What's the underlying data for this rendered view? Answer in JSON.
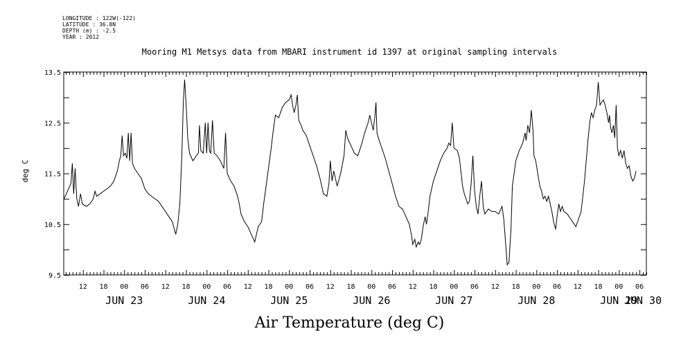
{
  "header": {
    "longitude": "LONGITUDE : 122W(-122)",
    "latitude": "LATITUDE : 36.8N",
    "depth": "DEPTH (m) : -2.5",
    "year": "YEAR : 2012"
  },
  "chart_data": {
    "type": "line",
    "title": "Mooring M1 Metsys data from MBARI instrument id 1397 at original sampling intervals",
    "xlabel": "Air Temperature (deg C)",
    "ylabel": "deg C",
    "ylim": [
      9.5,
      13.5
    ],
    "yticks": [
      "9.5",
      "10.5",
      "11.5",
      "12.5",
      "13.5"
    ],
    "x_unit": "hours since JUN 22 00:00 (2012)",
    "xlim": [
      6.4,
      176
    ],
    "hour_tick_labels": [
      {
        "h": 12,
        "label": "12"
      },
      {
        "h": 18,
        "label": "18"
      },
      {
        "h": 24,
        "label": "00"
      },
      {
        "h": 30,
        "label": "06"
      },
      {
        "h": 36,
        "label": "12"
      },
      {
        "h": 42,
        "label": "18"
      },
      {
        "h": 48,
        "label": "00"
      },
      {
        "h": 54,
        "label": "06"
      },
      {
        "h": 60,
        "label": "12"
      },
      {
        "h": 66,
        "label": "18"
      },
      {
        "h": 72,
        "label": "00"
      },
      {
        "h": 78,
        "label": "06"
      },
      {
        "h": 84,
        "label": "12"
      },
      {
        "h": 90,
        "label": "18"
      },
      {
        "h": 96,
        "label": "00"
      },
      {
        "h": 102,
        "label": "06"
      },
      {
        "h": 108,
        "label": "12"
      },
      {
        "h": 114,
        "label": "18"
      },
      {
        "h": 120,
        "label": "00"
      },
      {
        "h": 126,
        "label": "06"
      },
      {
        "h": 132,
        "label": "12"
      },
      {
        "h": 138,
        "label": "18"
      },
      {
        "h": 144,
        "label": "00"
      },
      {
        "h": 150,
        "label": "06"
      },
      {
        "h": 156,
        "label": "12"
      },
      {
        "h": 162,
        "label": "18"
      },
      {
        "h": 168,
        "label": "00"
      },
      {
        "h": 174,
        "label": "06"
      }
    ],
    "day_labels": [
      {
        "h": 24,
        "label": "JUN 23"
      },
      {
        "h": 48,
        "label": "JUN 24"
      },
      {
        "h": 72,
        "label": "JUN 25"
      },
      {
        "h": 96,
        "label": "JUN 26"
      },
      {
        "h": 120,
        "label": "JUN 27"
      },
      {
        "h": 144,
        "label": "JUN 28"
      },
      {
        "h": 168,
        "label": "JUN 29"
      },
      {
        "h": 175,
        "label": "JUN 30"
      }
    ],
    "series": [
      {
        "values": [
          [
            6.5,
            11.0
          ],
          [
            7.5,
            11.15
          ],
          [
            8.5,
            11.3
          ],
          [
            8.9,
            11.7
          ],
          [
            9.3,
            11.1
          ],
          [
            9.7,
            11.6
          ],
          [
            10.2,
            11.0
          ],
          [
            10.7,
            10.85
          ],
          [
            11.3,
            11.1
          ],
          [
            11.8,
            10.9
          ],
          [
            13,
            10.85
          ],
          [
            14,
            10.9
          ],
          [
            15,
            11.0
          ],
          [
            15.5,
            11.15
          ],
          [
            16,
            11.05
          ],
          [
            17,
            11.1
          ],
          [
            18,
            11.15
          ],
          [
            19,
            11.2
          ],
          [
            20,
            11.25
          ],
          [
            21,
            11.35
          ],
          [
            22,
            11.55
          ],
          [
            22.6,
            11.75
          ],
          [
            23,
            11.85
          ],
          [
            23.4,
            12.25
          ],
          [
            23.8,
            11.85
          ],
          [
            24.3,
            11.9
          ],
          [
            24.8,
            11.8
          ],
          [
            25.2,
            12.3
          ],
          [
            25.6,
            11.75
          ],
          [
            26,
            12.3
          ],
          [
            26.4,
            11.7
          ],
          [
            27,
            11.6
          ],
          [
            28,
            11.5
          ],
          [
            29,
            11.4
          ],
          [
            30,
            11.2
          ],
          [
            31,
            11.1
          ],
          [
            32,
            11.05
          ],
          [
            33,
            11.0
          ],
          [
            34,
            10.95
          ],
          [
            35,
            10.85
          ],
          [
            36,
            10.75
          ],
          [
            37,
            10.65
          ],
          [
            38,
            10.55
          ],
          [
            38.6,
            10.4
          ],
          [
            39,
            10.3
          ],
          [
            39.6,
            10.5
          ],
          [
            40.2,
            10.9
          ],
          [
            40.8,
            11.9
          ],
          [
            41.2,
            12.9
          ],
          [
            41.6,
            13.35
          ],
          [
            42,
            12.9
          ],
          [
            42.5,
            12.2
          ],
          [
            43,
            11.9
          ],
          [
            44,
            11.75
          ],
          [
            45,
            11.85
          ],
          [
            45.6,
            11.9
          ],
          [
            45.9,
            12.45
          ],
          [
            46.3,
            11.95
          ],
          [
            47,
            11.9
          ],
          [
            47.6,
            12.5
          ],
          [
            48,
            11.9
          ],
          [
            48.4,
            12.5
          ],
          [
            48.8,
            11.95
          ],
          [
            49.2,
            11.9
          ],
          [
            49.7,
            12.55
          ],
          [
            50.2,
            11.9
          ],
          [
            51,
            11.85
          ],
          [
            52,
            11.75
          ],
          [
            53,
            11.6
          ],
          [
            53.5,
            12.3
          ],
          [
            54,
            11.5
          ],
          [
            55,
            11.35
          ],
          [
            56,
            11.25
          ],
          [
            57,
            11.05
          ],
          [
            57.5,
            10.9
          ],
          [
            58,
            10.7
          ],
          [
            59,
            10.55
          ],
          [
            60,
            10.45
          ],
          [
            61,
            10.3
          ],
          [
            62,
            10.15
          ],
          [
            63,
            10.45
          ],
          [
            64,
            10.55
          ],
          [
            64.6,
            10.9
          ],
          [
            65.3,
            11.25
          ],
          [
            66,
            11.6
          ],
          [
            66.7,
            11.95
          ],
          [
            67.3,
            12.3
          ],
          [
            68,
            12.65
          ],
          [
            69,
            12.6
          ],
          [
            70,
            12.8
          ],
          [
            71,
            12.9
          ],
          [
            72,
            12.95
          ],
          [
            72.6,
            13.05
          ],
          [
            73,
            12.85
          ],
          [
            73.5,
            12.7
          ],
          [
            74,
            12.85
          ],
          [
            74.4,
            13.05
          ],
          [
            74.8,
            12.55
          ],
          [
            75.5,
            12.45
          ],
          [
            76,
            12.35
          ],
          [
            77,
            12.25
          ],
          [
            78,
            12.05
          ],
          [
            79,
            11.85
          ],
          [
            80,
            11.65
          ],
          [
            81,
            11.4
          ],
          [
            82,
            11.1
          ],
          [
            83,
            11.05
          ],
          [
            83.6,
            11.3
          ],
          [
            84,
            11.75
          ],
          [
            84.5,
            11.35
          ],
          [
            85,
            11.55
          ],
          [
            86,
            11.25
          ],
          [
            87,
            11.5
          ],
          [
            88,
            11.85
          ],
          [
            88.5,
            12.35
          ],
          [
            89,
            12.2
          ],
          [
            90,
            12.05
          ],
          [
            91,
            11.9
          ],
          [
            92,
            11.85
          ],
          [
            93,
            12.05
          ],
          [
            94,
            12.3
          ],
          [
            95,
            12.5
          ],
          [
            95.5,
            12.65
          ],
          [
            96,
            12.5
          ],
          [
            96.5,
            12.35
          ],
          [
            97,
            12.65
          ],
          [
            97.3,
            12.9
          ],
          [
            97.6,
            12.3
          ],
          [
            98,
            12.2
          ],
          [
            99,
            12.0
          ],
          [
            100,
            11.8
          ],
          [
            101,
            11.55
          ],
          [
            102,
            11.3
          ],
          [
            103,
            11.05
          ],
          [
            104,
            10.85
          ],
          [
            105,
            10.8
          ],
          [
            106,
            10.65
          ],
          [
            107,
            10.5
          ],
          [
            107.6,
            10.3
          ],
          [
            108,
            10.1
          ],
          [
            108.6,
            10.2
          ],
          [
            109,
            10.05
          ],
          [
            109.6,
            10.15
          ],
          [
            110,
            10.1
          ],
          [
            110.5,
            10.2
          ],
          [
            111,
            10.45
          ],
          [
            111.6,
            10.65
          ],
          [
            112,
            10.5
          ],
          [
            112.6,
            10.8
          ],
          [
            113,
            11.05
          ],
          [
            114,
            11.35
          ],
          [
            115,
            11.55
          ],
          [
            116,
            11.75
          ],
          [
            117,
            11.9
          ],
          [
            118,
            12.0
          ],
          [
            118.5,
            12.1
          ],
          [
            119,
            12.05
          ],
          [
            119.5,
            12.5
          ],
          [
            120,
            12.0
          ],
          [
            121,
            11.95
          ],
          [
            121.6,
            11.8
          ],
          [
            122,
            11.55
          ],
          [
            122.5,
            11.25
          ],
          [
            123,
            11.1
          ],
          [
            123.5,
            11.0
          ],
          [
            124,
            10.9
          ],
          [
            124.5,
            10.95
          ],
          [
            125,
            11.3
          ],
          [
            125.5,
            11.85
          ],
          [
            126,
            11.15
          ],
          [
            126.5,
            10.85
          ],
          [
            127,
            10.7
          ],
          [
            127.5,
            11.05
          ],
          [
            128,
            11.35
          ],
          [
            128.5,
            10.85
          ],
          [
            129,
            10.7
          ],
          [
            129.5,
            10.75
          ],
          [
            130,
            10.8
          ],
          [
            131,
            10.75
          ],
          [
            132,
            10.75
          ],
          [
            133,
            10.7
          ],
          [
            134,
            10.85
          ],
          [
            134.5,
            10.6
          ],
          [
            135,
            10.15
          ],
          [
            135.5,
            9.7
          ],
          [
            136,
            9.75
          ],
          [
            136.6,
            10.4
          ],
          [
            137,
            11.25
          ],
          [
            137.5,
            11.5
          ],
          [
            138,
            11.75
          ],
          [
            139,
            11.95
          ],
          [
            140,
            12.1
          ],
          [
            140.7,
            12.3
          ],
          [
            141,
            12.15
          ],
          [
            141.5,
            12.45
          ],
          [
            142,
            12.3
          ],
          [
            142.5,
            12.75
          ],
          [
            143,
            12.35
          ],
          [
            143.3,
            11.85
          ],
          [
            143.8,
            11.75
          ],
          [
            144.5,
            11.45
          ],
          [
            145,
            11.25
          ],
          [
            145.5,
            11.15
          ],
          [
            146,
            11.0
          ],
          [
            146.5,
            11.05
          ],
          [
            147,
            10.95
          ],
          [
            147.5,
            11.05
          ],
          [
            148,
            10.9
          ],
          [
            148.5,
            10.75
          ],
          [
            149,
            10.55
          ],
          [
            149.6,
            10.4
          ],
          [
            150,
            10.65
          ],
          [
            150.5,
            10.9
          ],
          [
            151,
            10.75
          ],
          [
            151.5,
            10.85
          ],
          [
            152,
            10.75
          ],
          [
            153,
            10.7
          ],
          [
            154,
            10.6
          ],
          [
            155,
            10.5
          ],
          [
            155.5,
            10.45
          ],
          [
            156,
            10.55
          ],
          [
            156.5,
            10.65
          ],
          [
            157,
            10.75
          ],
          [
            157.5,
            11.05
          ],
          [
            158,
            11.35
          ],
          [
            158.5,
            11.75
          ],
          [
            159,
            12.15
          ],
          [
            159.5,
            12.5
          ],
          [
            160,
            12.7
          ],
          [
            160.5,
            12.6
          ],
          [
            161,
            12.75
          ],
          [
            161.5,
            12.85
          ],
          [
            162,
            13.3
          ],
          [
            162.5,
            12.85
          ],
          [
            163,
            12.9
          ],
          [
            163.5,
            12.95
          ],
          [
            164,
            12.85
          ],
          [
            164.5,
            12.7
          ],
          [
            165,
            12.5
          ],
          [
            165.3,
            12.65
          ],
          [
            165.6,
            12.4
          ],
          [
            166,
            12.3
          ],
          [
            166.4,
            12.45
          ],
          [
            166.8,
            12.2
          ],
          [
            167.2,
            12.85
          ],
          [
            167.6,
            12.0
          ],
          [
            168,
            11.85
          ],
          [
            168.5,
            11.95
          ],
          [
            169,
            11.8
          ],
          [
            169.5,
            11.95
          ],
          [
            170,
            11.7
          ],
          [
            170.5,
            11.6
          ],
          [
            171,
            11.65
          ],
          [
            171.5,
            11.45
          ],
          [
            172,
            11.35
          ],
          [
            172.5,
            11.4
          ],
          [
            173,
            11.55
          ]
        ]
      }
    ]
  }
}
